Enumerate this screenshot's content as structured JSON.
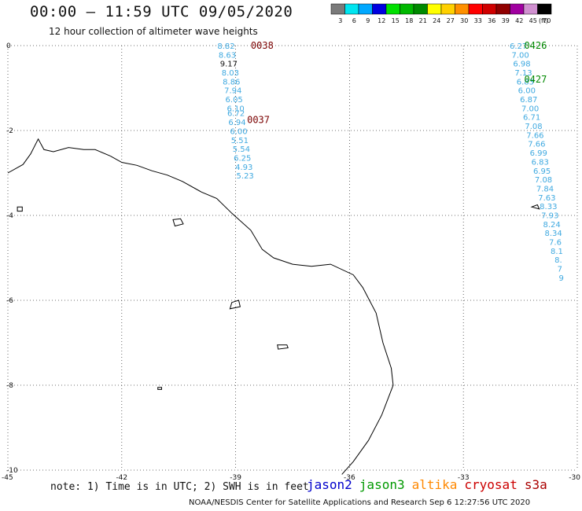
{
  "header": {
    "title": "00:00 – 11:59 UTC 09/05/2020",
    "subtitle": "12 hour collection of altimeter wave heights"
  },
  "legend": {
    "unit": "(ft)",
    "bins": [
      {
        "label": "3",
        "color": "#7a7a7a"
      },
      {
        "label": "6",
        "color": "#00e5f0"
      },
      {
        "label": "9",
        "color": "#00a8ff"
      },
      {
        "label": "12",
        "color": "#0000e0"
      },
      {
        "label": "15",
        "color": "#00e000"
      },
      {
        "label": "18",
        "color": "#00b800"
      },
      {
        "label": "21",
        "color": "#008a00"
      },
      {
        "label": "24",
        "color": "#ffff00"
      },
      {
        "label": "27",
        "color": "#ffd000"
      },
      {
        "label": "30",
        "color": "#ff9000"
      },
      {
        "label": "33",
        "color": "#ff0000"
      },
      {
        "label": "36",
        "color": "#d00000"
      },
      {
        "label": "39",
        "color": "#900000"
      },
      {
        "label": "42",
        "color": "#a000a0"
      },
      {
        "label": "45",
        "color": "#d090d0"
      },
      {
        "label": "70",
        "color": "#000000"
      }
    ]
  },
  "satellites": [
    {
      "name": "jason2",
      "color": "#0000cc"
    },
    {
      "name": "jason3",
      "color": "#009900"
    },
    {
      "name": "altika",
      "color": "#ff8800"
    },
    {
      "name": "cryosat",
      "color": "#cc0000"
    },
    {
      "name": "s3a",
      "color": "#aa0000"
    }
  ],
  "footer": {
    "note": "note: 1) Time is in UTC; 2) SWH is in feet",
    "credit": "NOAA/NESDIS Center for Satellite Applications and Research   Sep  6 12:27:56 UTC 2020"
  },
  "chart_data": {
    "type": "map",
    "xlim": [
      -45,
      -30
    ],
    "ylim": [
      -10,
      0
    ],
    "x_ticks": [
      -45,
      -42,
      -39,
      -36,
      -33,
      -30
    ],
    "y_ticks": [
      0,
      -2,
      -4,
      -6,
      -8,
      -10
    ],
    "grid": true,
    "tracks": [
      {
        "label": "0038",
        "label_color": "#7a0000",
        "label_at": [
          -38.3,
          0.0
        ],
        "points": [
          {
            "lon": -39.25,
            "lat": 0.0,
            "swh": "8.82",
            "color": "#3fa9e0"
          },
          {
            "lon": -39.22,
            "lat": -0.21,
            "swh": "8.63",
            "color": "#3fa9e0"
          },
          {
            "lon": -39.18,
            "lat": -0.42,
            "swh": "9.17",
            "color": "#111111"
          },
          {
            "lon": -39.14,
            "lat": -0.63,
            "swh": "8.03",
            "color": "#3fa9e0"
          },
          {
            "lon": -39.11,
            "lat": -0.84,
            "swh": "8.86",
            "color": "#3fa9e0"
          },
          {
            "lon": -39.07,
            "lat": -1.05,
            "swh": "7.94",
            "color": "#3fa9e0"
          },
          {
            "lon": -39.04,
            "lat": -1.26,
            "swh": "6.05",
            "color": "#3fa9e0"
          },
          {
            "lon": -39.0,
            "lat": -1.47,
            "swh": "6.10",
            "color": "#3fa9e0"
          },
          {
            "lon": -38.99,
            "lat": -1.58,
            "swh": "6.72",
            "color": "#3fa9e0"
          },
          {
            "lon": -38.96,
            "lat": -1.8,
            "swh": "6.94",
            "color": "#3fa9e0"
          },
          {
            "lon": -38.92,
            "lat": -2.01,
            "swh": "6.00",
            "color": "#3fa9e0"
          },
          {
            "lon": -38.89,
            "lat": -2.22,
            "swh": "5.51",
            "color": "#3fa9e0"
          },
          {
            "lon": -38.85,
            "lat": -2.43,
            "swh": "5.54",
            "color": "#3fa9e0"
          },
          {
            "lon": -38.82,
            "lat": -2.64,
            "swh": "6.25",
            "color": "#3fa9e0"
          },
          {
            "lon": -38.78,
            "lat": -2.85,
            "swh": "4.93",
            "color": "#3fa9e0"
          },
          {
            "lon": -38.75,
            "lat": -3.06,
            "swh": "5.23",
            "color": "#3fa9e0"
          }
        ]
      },
      {
        "label": "0037",
        "label_color": "#7a0000",
        "label_at": [
          -38.4,
          -1.75
        ],
        "points": []
      },
      {
        "label": "0426",
        "label_color": "#008800",
        "label_at": [
          -31.1,
          0.0
        ],
        "points": [
          {
            "lon": -31.55,
            "lat": 0.0,
            "swh": "6.27",
            "color": "#3fa9e0"
          },
          {
            "lon": -31.5,
            "lat": -0.21,
            "swh": "7.00",
            "color": "#3fa9e0"
          },
          {
            "lon": -31.46,
            "lat": -0.42,
            "swh": "6.98",
            "color": "#3fa9e0"
          },
          {
            "lon": -31.42,
            "lat": -0.63,
            "swh": "7.13",
            "color": "#3fa9e0"
          },
          {
            "lon": -31.37,
            "lat": -0.84,
            "swh": "6.83",
            "color": "#3fa9e0"
          },
          {
            "lon": -31.33,
            "lat": -1.05,
            "swh": "6.00",
            "color": "#3fa9e0"
          },
          {
            "lon": -31.28,
            "lat": -1.26,
            "swh": "6.87",
            "color": "#3fa9e0"
          },
          {
            "lon": -31.24,
            "lat": -1.47,
            "swh": "7.00",
            "color": "#3fa9e0"
          },
          {
            "lon": -31.2,
            "lat": -1.68,
            "swh": "6.71",
            "color": "#3fa9e0"
          },
          {
            "lon": -31.15,
            "lat": -1.89,
            "swh": "7.08",
            "color": "#3fa9e0"
          },
          {
            "lon": -31.11,
            "lat": -2.1,
            "swh": "7.66",
            "color": "#3fa9e0"
          },
          {
            "lon": -31.07,
            "lat": -2.31,
            "swh": "7.66",
            "color": "#3fa9e0"
          },
          {
            "lon": -31.02,
            "lat": -2.52,
            "swh": "6.99",
            "color": "#3fa9e0"
          },
          {
            "lon": -30.98,
            "lat": -2.73,
            "swh": "6.83",
            "color": "#3fa9e0"
          },
          {
            "lon": -30.93,
            "lat": -2.94,
            "swh": "6.95",
            "color": "#3fa9e0"
          },
          {
            "lon": -30.89,
            "lat": -3.15,
            "swh": "7.08",
            "color": "#3fa9e0"
          },
          {
            "lon": -30.85,
            "lat": -3.36,
            "swh": "7.84",
            "color": "#3fa9e0"
          },
          {
            "lon": -30.8,
            "lat": -3.57,
            "swh": "7.63",
            "color": "#3fa9e0"
          },
          {
            "lon": -30.76,
            "lat": -3.78,
            "swh": "8.33",
            "color": "#3fa9e0"
          },
          {
            "lon": -30.72,
            "lat": -3.99,
            "swh": "7.93",
            "color": "#3fa9e0"
          },
          {
            "lon": -30.67,
            "lat": -4.2,
            "swh": "8.24",
            "color": "#3fa9e0"
          },
          {
            "lon": -30.63,
            "lat": -4.41,
            "swh": "8.34",
            "color": "#3fa9e0"
          },
          {
            "lon": -30.58,
            "lat": -4.62,
            "swh": "7.6",
            "color": "#3fa9e0"
          },
          {
            "lon": -30.54,
            "lat": -4.83,
            "swh": "8.1",
            "color": "#3fa9e0"
          },
          {
            "lon": -30.5,
            "lat": -5.04,
            "swh": "8.",
            "color": "#3fa9e0"
          },
          {
            "lon": -30.46,
            "lat": -5.25,
            "swh": "7",
            "color": "#3fa9e0"
          },
          {
            "lon": -30.42,
            "lat": -5.46,
            "swh": "9",
            "color": "#3fa9e0"
          }
        ]
      },
      {
        "label": "0427",
        "label_color": "#008800",
        "label_at": [
          -31.1,
          -0.8
        ],
        "points": []
      }
    ],
    "coastline": [
      [
        -42.3,
        -2.6
      ],
      [
        -42.0,
        -2.75
      ],
      [
        -41.6,
        -2.82
      ],
      [
        -41.2,
        -2.95
      ],
      [
        -40.8,
        -3.05
      ],
      [
        -40.4,
        -3.2
      ],
      [
        -39.9,
        -3.45
      ],
      [
        -39.5,
        -3.6
      ],
      [
        -39.1,
        -3.95
      ],
      [
        -38.6,
        -4.35
      ],
      [
        -38.3,
        -4.8
      ],
      [
        -38.0,
        -5.0
      ],
      [
        -37.5,
        -5.15
      ],
      [
        -37.0,
        -5.2
      ],
      [
        -36.5,
        -5.15
      ],
      [
        -35.9,
        -5.4
      ],
      [
        -35.65,
        -5.7
      ],
      [
        -35.3,
        -6.3
      ],
      [
        -35.12,
        -7.0
      ],
      [
        -34.9,
        -7.6
      ],
      [
        -34.85,
        -8.0
      ],
      [
        -35.15,
        -8.7
      ],
      [
        -35.5,
        -9.3
      ],
      [
        -35.9,
        -9.8
      ],
      [
        -36.2,
        -10.1
      ]
    ],
    "coastline_west": [
      [
        -45.0,
        -3.0
      ],
      [
        -44.6,
        -2.8
      ],
      [
        -44.4,
        -2.55
      ],
      [
        -44.2,
        -2.2
      ],
      [
        -44.05,
        -2.45
      ],
      [
        -43.8,
        -2.5
      ],
      [
        -43.4,
        -2.4
      ],
      [
        -43.0,
        -2.45
      ],
      [
        -42.7,
        -2.45
      ],
      [
        -42.3,
        -2.6
      ]
    ],
    "islands": [
      [
        [
          -40.65,
          -4.1
        ],
        [
          -40.45,
          -4.08
        ],
        [
          -40.38,
          -4.2
        ],
        [
          -40.6,
          -4.25
        ]
      ],
      [
        [
          -39.1,
          -6.05
        ],
        [
          -38.92,
          -6.0
        ],
        [
          -38.88,
          -6.15
        ],
        [
          -39.15,
          -6.2
        ]
      ],
      [
        [
          -37.9,
          -7.05
        ],
        [
          -37.65,
          -7.05
        ],
        [
          -37.62,
          -7.12
        ],
        [
          -37.88,
          -7.15
        ]
      ],
      [
        [
          -41.05,
          -8.05
        ],
        [
          -40.95,
          -8.05
        ],
        [
          -40.95,
          -8.1
        ],
        [
          -41.05,
          -8.1
        ]
      ],
      [
        [
          -44.75,
          -3.8
        ],
        [
          -44.62,
          -3.8
        ],
        [
          -44.62,
          -3.9
        ],
        [
          -44.75,
          -3.9
        ]
      ],
      [
        [
          -31.2,
          -3.8
        ],
        [
          -31.05,
          -3.75
        ],
        [
          -31.0,
          -3.85
        ]
      ]
    ]
  }
}
